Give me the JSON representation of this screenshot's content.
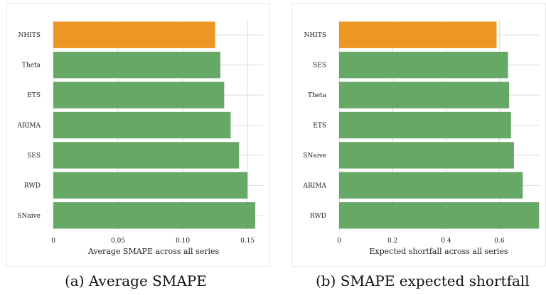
{
  "captions": {
    "a": "(a) Average SMAPE",
    "b": "(b) SMAPE expected shortfall"
  },
  "colors": {
    "highlight": "#ee9624",
    "bar": "#66a866",
    "grid": "#dcdcdc",
    "text": "#222222"
  },
  "chart_data": [
    {
      "type": "bar",
      "orientation": "horizontal",
      "categories": [
        "NHITS",
        "Theta",
        "ETS",
        "ARIMA",
        "SES",
        "RWD",
        "SNaive"
      ],
      "values": [
        0.125,
        0.129,
        0.132,
        0.137,
        0.1435,
        0.15,
        0.156
      ],
      "highlight": "NHITS",
      "xlabel": "Average SMAPE across all series",
      "ylabel": "",
      "xlim": [
        0,
        0.162
      ],
      "xticks": [
        0,
        0.05,
        0.1,
        0.15
      ],
      "xtick_labels": [
        "0",
        "0.05",
        "0.10",
        "0.15"
      ],
      "grid": "vertical"
    },
    {
      "type": "bar",
      "orientation": "horizontal",
      "categories": [
        "NHITS",
        "SES",
        "Theta",
        "ETS",
        "SNaive",
        "ARIMA",
        "RWD"
      ],
      "values": [
        0.589,
        0.632,
        0.636,
        0.643,
        0.654,
        0.687,
        0.748
      ],
      "highlight": "NHITS",
      "xlabel": "Expected shortfall across all series",
      "ylabel": "",
      "xlim": [
        0,
        0.75
      ],
      "xticks": [
        0,
        0.2,
        0.4,
        0.6
      ],
      "xtick_labels": [
        "0",
        "0.2",
        "0.4",
        "0.6"
      ],
      "grid": "vertical"
    }
  ]
}
